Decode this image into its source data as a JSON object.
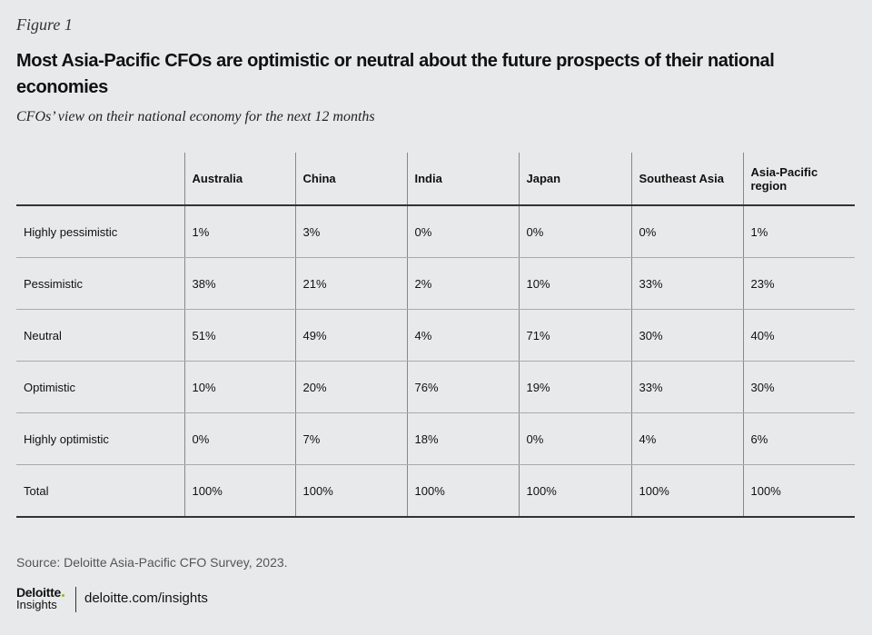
{
  "figure_label": "Figure 1",
  "title": "Most Asia-Pacific CFOs are optimistic or neutral about the future prospects of their national economies",
  "subtitle": "CFOs’ view on their national economy for the next 12 months",
  "table": {
    "header": [
      "",
      "Australia",
      "China",
      "India",
      "Japan",
      "Southeast Asia",
      "Asia-Pacific region"
    ],
    "rows": [
      [
        "Highly pessimistic",
        "1%",
        "3%",
        "0%",
        "0%",
        "0%",
        "1%"
      ],
      [
        "Pessimistic",
        "38%",
        "21%",
        "2%",
        "10%",
        "33%",
        "23%"
      ],
      [
        "Neutral",
        "51%",
        "49%",
        "4%",
        "71%",
        "30%",
        "40%"
      ],
      [
        "Optimistic",
        "10%",
        "20%",
        "76%",
        "19%",
        "33%",
        "30%"
      ],
      [
        "Highly optimistic",
        "0%",
        "7%",
        "18%",
        "0%",
        "4%",
        "6%"
      ],
      [
        "Total",
        "100%",
        "100%",
        "100%",
        "100%",
        "100%",
        "100%"
      ]
    ]
  },
  "source": "Source: Deloitte Asia-Pacific CFO Survey, 2023.",
  "logo": {
    "brand": "Deloitte",
    "product": "Insights"
  },
  "url": "deloitte.com/insights"
}
